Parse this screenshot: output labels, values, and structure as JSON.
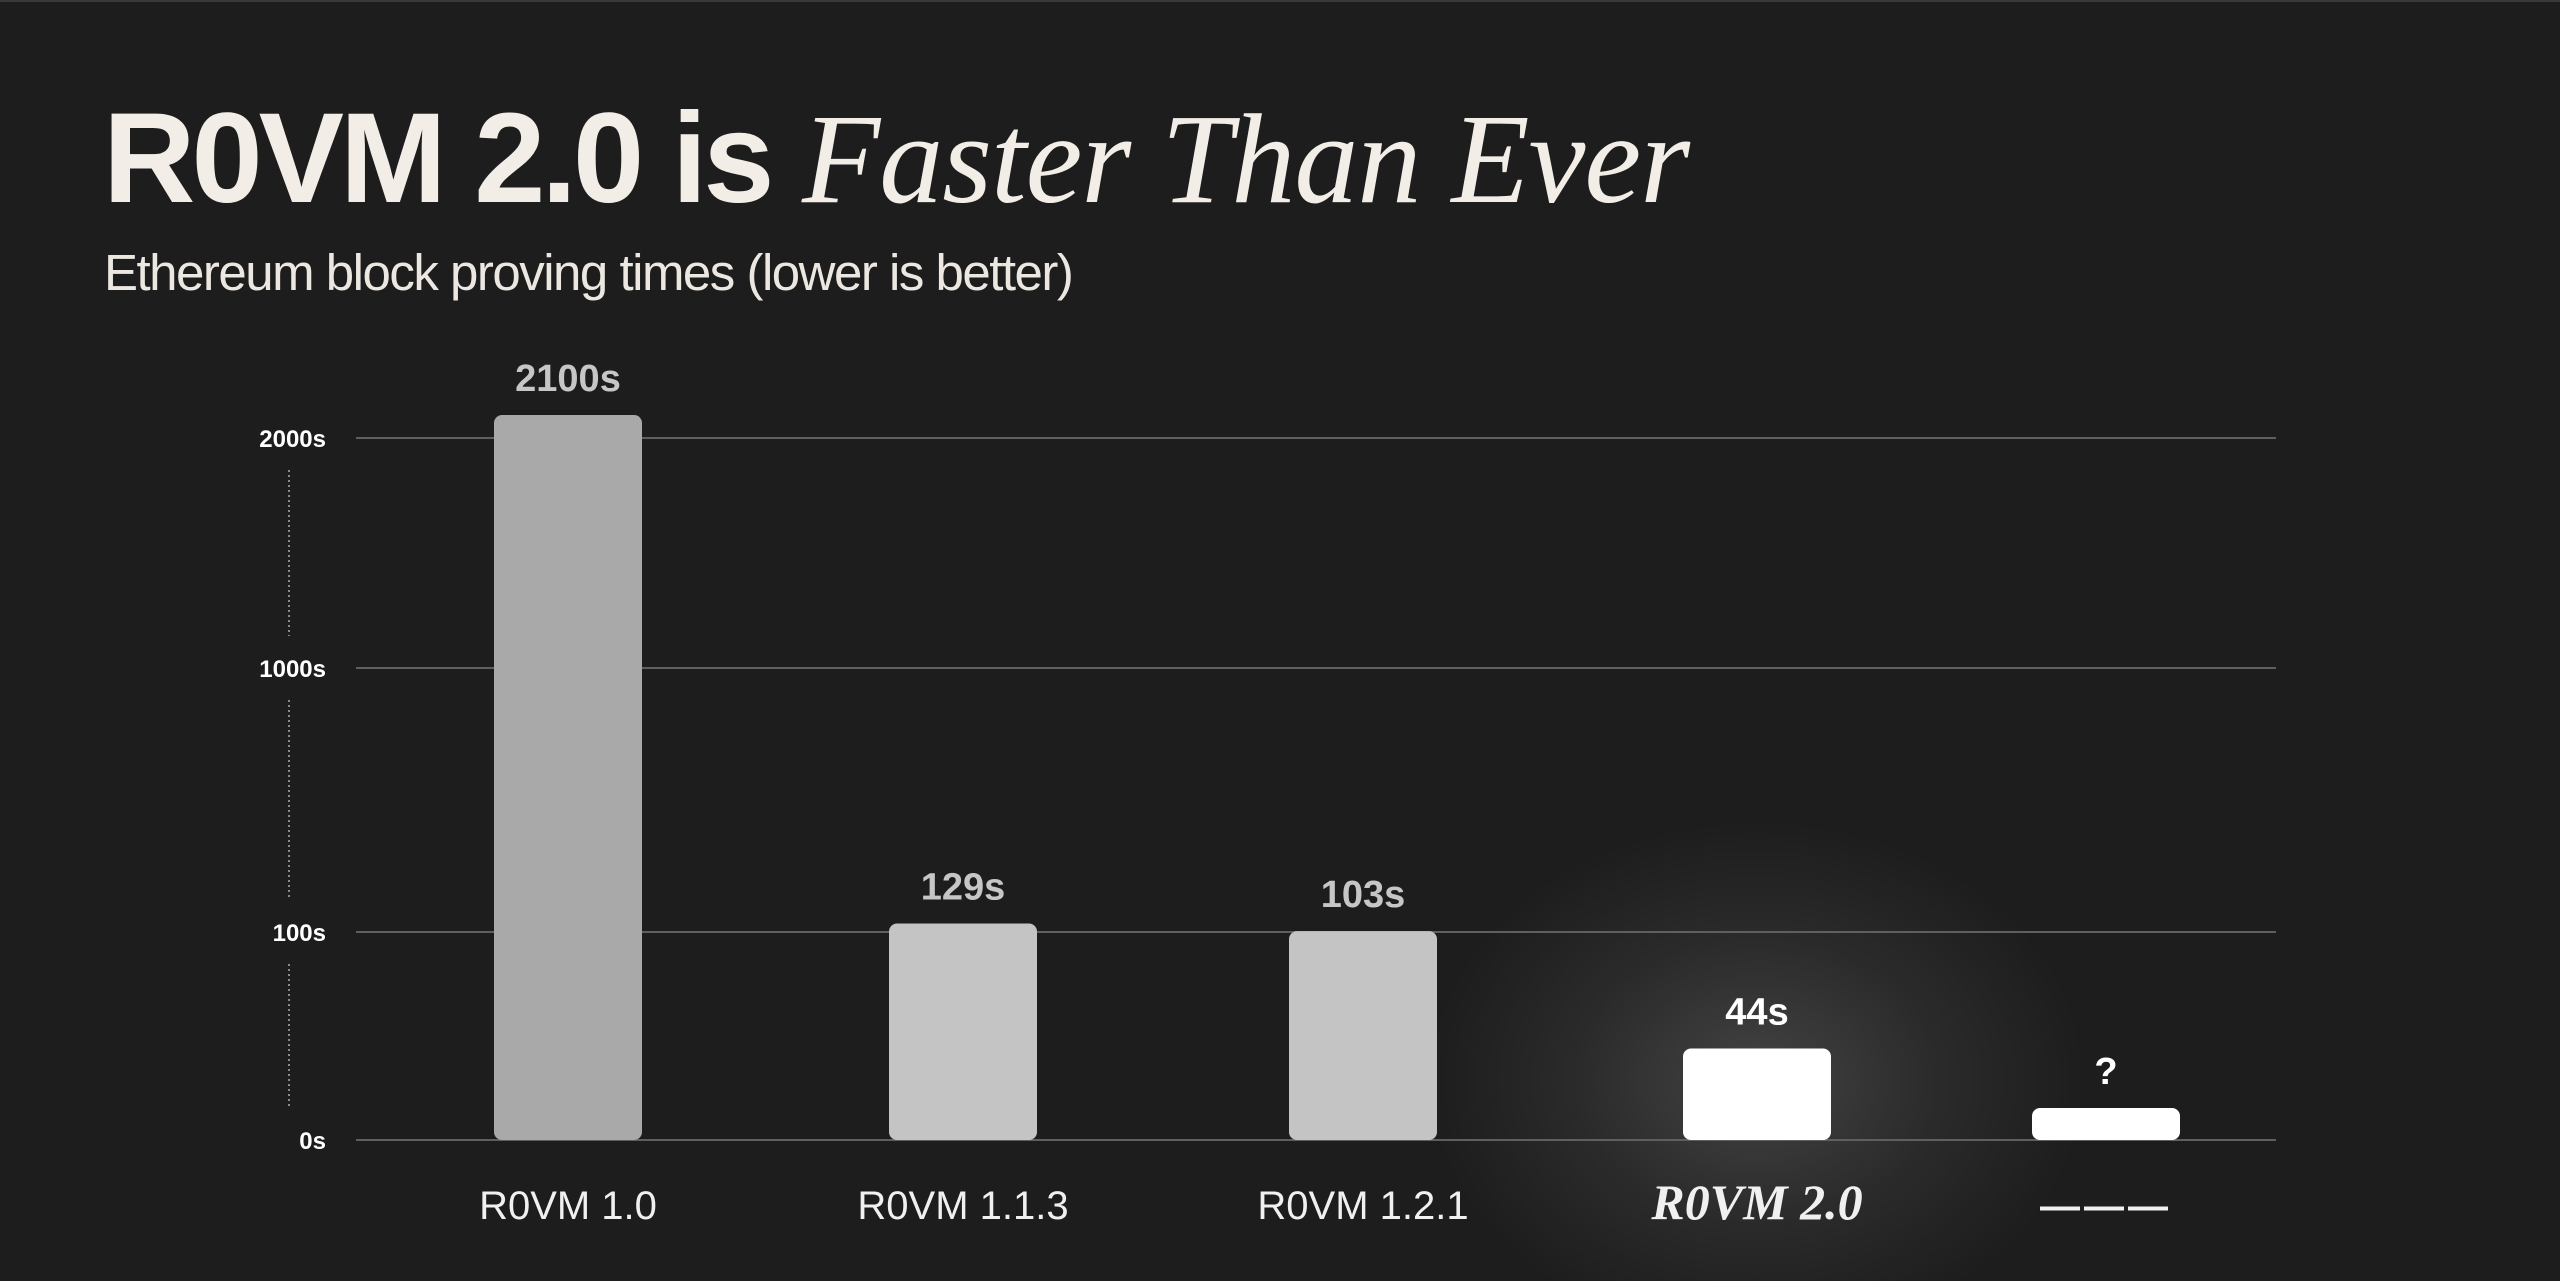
{
  "header": {
    "title_bold": "R0VM 2.0 is",
    "title_italic": "Faster Than Ever",
    "subtitle": "Ethereum block proving times (lower is better)"
  },
  "colors": {
    "background": "#1d1d1d",
    "bar_1": "#a9a9a9",
    "bar_2": "#c4c4c4",
    "bar_3": "#c4c4c4",
    "bar_4": "#ffffff",
    "bar_5": "#ffffff",
    "gridline": "#5f5f5f",
    "label_gray": "#c6c6c6",
    "label_white": "#ffffff"
  },
  "chart_data": {
    "type": "bar",
    "title": "",
    "xlabel": "",
    "ylabel": "",
    "y_scale": "piecewise (0s–100s–1000s–2000s)",
    "y_ticks": [
      "0s",
      "100s",
      "1000s",
      "2000s"
    ],
    "y_tick_values": [
      0,
      100,
      1000,
      2000
    ],
    "categories": [
      "R0VM 1.0",
      "R0VM 1.1.3",
      "R0VM 1.2.1",
      "R0VM 2.0",
      "———"
    ],
    "values": [
      2100,
      129,
      103,
      44,
      null
    ],
    "data_labels": [
      "2100s",
      "129s",
      "103s",
      "44s",
      "?"
    ],
    "highlight": "R0VM 2.0",
    "grid": true,
    "legend": "none"
  }
}
